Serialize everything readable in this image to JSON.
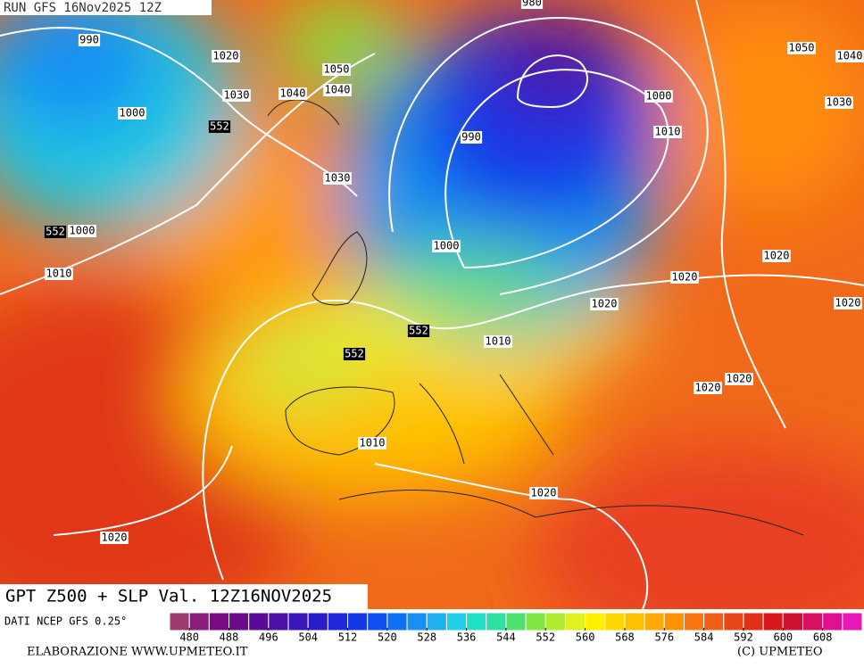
{
  "header": {
    "run": "RUN GFS 16Nov2025 12Z"
  },
  "map": {
    "contour_labels": [
      "980",
      "990",
      "1020",
      "1050",
      "1030",
      "1040",
      "1040",
      "1000",
      "552",
      "990",
      "1000",
      "1010",
      "1050",
      "1040",
      "1030",
      "1030",
      "552",
      "1000",
      "1010",
      "1000",
      "1020",
      "1020",
      "1020",
      "1020",
      "552",
      "1010",
      "552",
      "1020",
      "1020",
      "1010",
      "1020",
      "1020"
    ]
  },
  "footer": {
    "title": "GPT Z500 + SLP Val. 12Z16NOV2025",
    "source": "DATI NCEP GFS 0.25°",
    "credit": "ELABORAZIONE WWW.UPMETEO.IT",
    "copyright": "(C) UPMETEO"
  },
  "colorbar": {
    "range": [
      476,
      616
    ],
    "ticks": [
      480,
      488,
      496,
      504,
      512,
      520,
      528,
      536,
      544,
      552,
      560,
      568,
      576,
      584,
      592,
      600,
      608
    ],
    "colors": [
      "#9e3a6e",
      "#8a1c7c",
      "#7a0a80",
      "#6a0a8c",
      "#5a0a9a",
      "#4a10a8",
      "#3a16b8",
      "#2a1cc8",
      "#1e28d8",
      "#1438e8",
      "#1050f0",
      "#1070f4",
      "#1890f4",
      "#20b0f0",
      "#20d0e8",
      "#20e0c8",
      "#30e0a0",
      "#50e070",
      "#80e840",
      "#b0ec30",
      "#e0f020",
      "#fff000",
      "#ffd800",
      "#ffc000",
      "#ffa800",
      "#ff9000",
      "#f87810",
      "#f06018",
      "#e84818",
      "#e03018",
      "#d81818",
      "#d01030",
      "#d81060",
      "#e01090",
      "#e818b8"
    ]
  }
}
